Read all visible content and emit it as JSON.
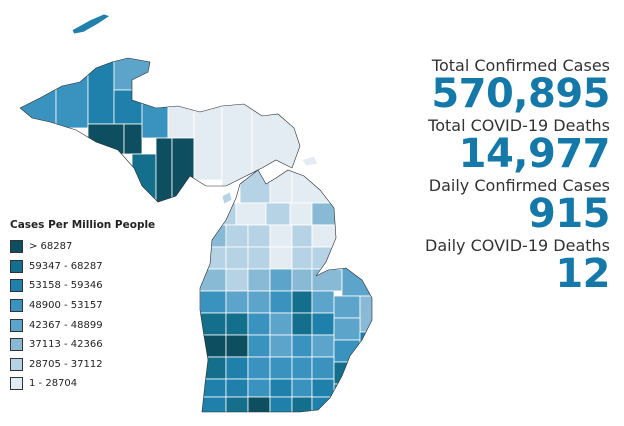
{
  "legend": {
    "title": "Cases Per Million People",
    "items": [
      {
        "label": "> 68287",
        "color": "#0d4f61"
      },
      {
        "label": "59347 - 68287",
        "color": "#136f8c"
      },
      {
        "label": "53158 - 59346",
        "color": "#1f80ac"
      },
      {
        "label": "48900 - 53157",
        "color": "#3a92bf"
      },
      {
        "label": "42367 - 48899",
        "color": "#5da4ca"
      },
      {
        "label": "37113 - 42366",
        "color": "#88bad6"
      },
      {
        "label": "28705 - 37112",
        "color": "#b6d3e5"
      },
      {
        "label": "1 - 28704",
        "color": "#e3ecf3"
      }
    ]
  },
  "stats": {
    "accent_color": "#1478a8",
    "items": [
      {
        "label": "Total Confirmed Cases",
        "value": "570,895"
      },
      {
        "label": "Total COVID-19 Deaths",
        "value": "14,977"
      },
      {
        "label": "Daily Confirmed Cases",
        "value": "915"
      },
      {
        "label": "Daily COVID-19 Deaths",
        "value": "12"
      }
    ]
  }
}
